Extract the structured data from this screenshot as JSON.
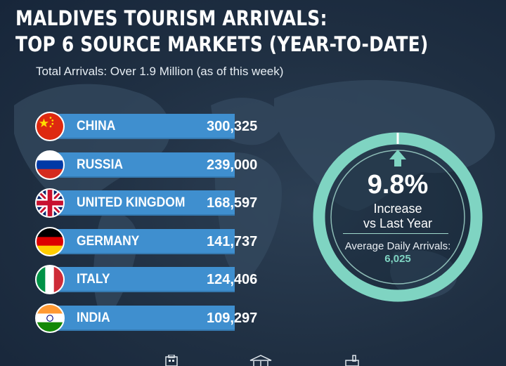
{
  "title_lines": [
    "MALDIVES TOURISM ARRIVALS:",
    "TOP 6 SOURCE MARKETS (YEAR-TO-DATE)"
  ],
  "subtitle": "Total Arrivals: Over 1.9 Million (as of  this week)",
  "colors": {
    "bar": "#3f8fcf",
    "ring": "#7fd4c2",
    "background": "#1f2f42"
  },
  "chart_data": {
    "type": "bar",
    "orientation": "horizontal",
    "categories": [
      "CHINA",
      "RUSSIA",
      "UNITED KINGDOM",
      "GERMANY",
      "ITALY",
      "INDIA"
    ],
    "values": [
      300325,
      239000,
      168597,
      141737,
      124406,
      109297
    ],
    "value_labels": [
      "300,325",
      "239,000",
      "168,597",
      "141,737",
      "124,406",
      "109,297"
    ],
    "flags": [
      "china-flag-icon",
      "russia-flag-icon",
      "uk-flag-icon",
      "germany-flag-icon",
      "italy-flag-icon",
      "india-flag-icon"
    ],
    "grid": false
  },
  "highlight": {
    "percent": "9.8%",
    "increase_line1": "Increase",
    "increase_line2": "vs Last Year",
    "avg_label": "Average Daily Arrivals:",
    "avg_value": "6,025",
    "icon": "arrow-up-icon"
  },
  "bottom_icons": [
    "building-icon",
    "bank-icon",
    "factory-icon"
  ]
}
